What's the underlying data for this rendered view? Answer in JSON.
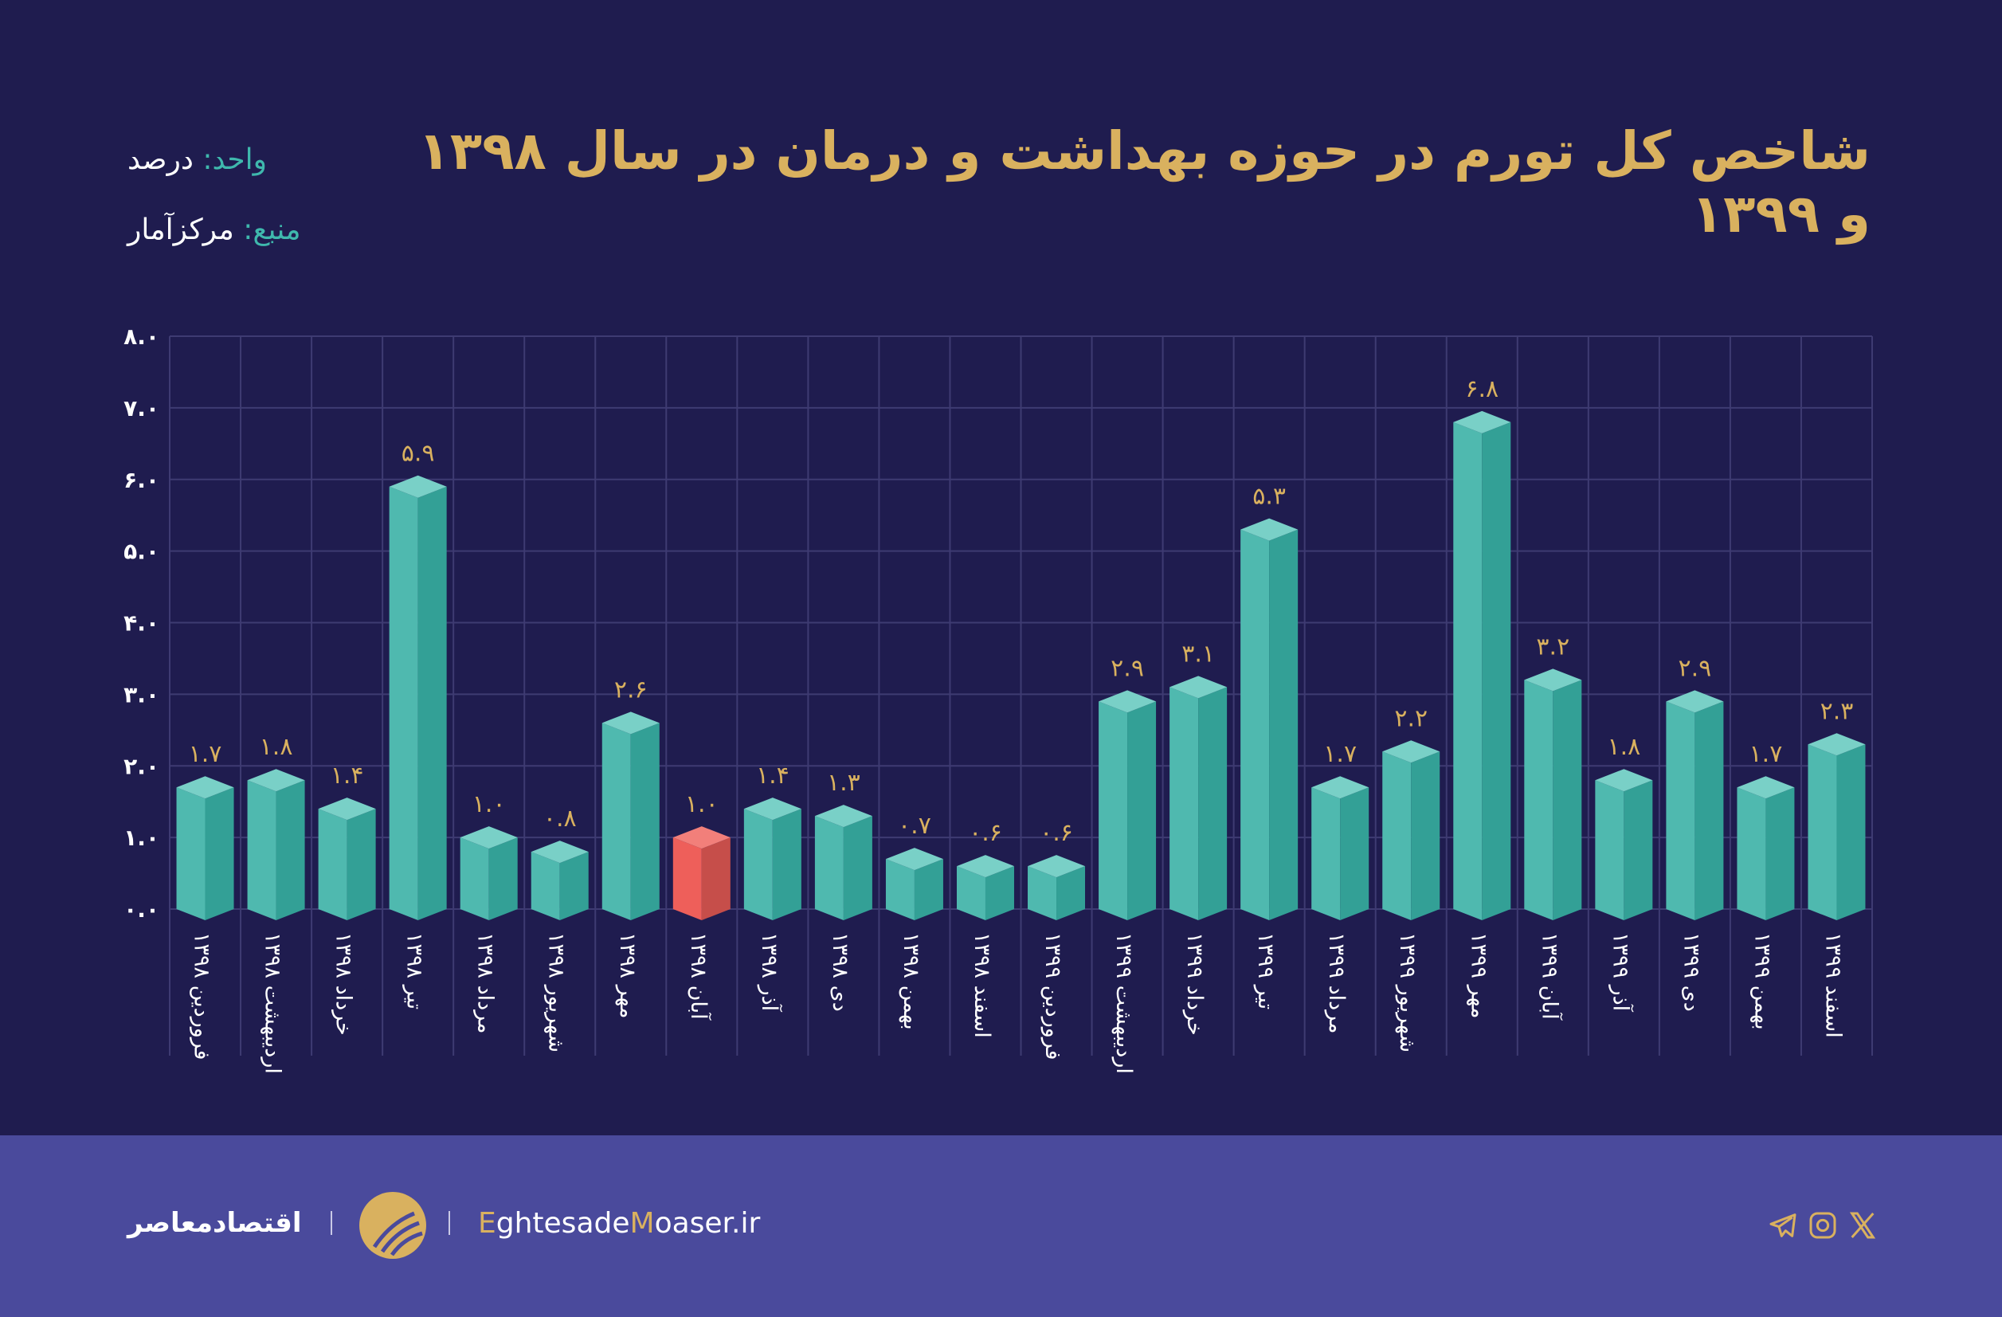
{
  "header": {
    "title": "شاخص کل تورم در حوزه بهداشت و درمان در سال ۱۳۹۸ و ۱۳۹۹",
    "unit_key": "واحد:",
    "unit_value": "درصد",
    "source_key": "منبع:",
    "source_value": "مرکزآمار"
  },
  "chart_data": {
    "type": "bar",
    "title": "شاخص کل تورم در حوزه بهداشت و درمان در سال ۱۳۹۸ و ۱۳۹۹",
    "ylim": [
      0,
      8
    ],
    "grid": true,
    "y_ticks": [
      0,
      1,
      2,
      3,
      4,
      5,
      6,
      7,
      8
    ],
    "y_tick_labels": [
      "۰.۰",
      "۱.۰",
      "۲.۰",
      "۳.۰",
      "۴.۰",
      "۵.۰",
      "۶.۰",
      "۷.۰",
      "۸.۰"
    ],
    "categories": [
      "فروردین ۱۳۹۸",
      "اردیبهشت ۱۳۹۸",
      "خرداد ۱۳۹۸",
      "تیر ۱۳۹۸",
      "مرداد ۱۳۹۸",
      "شهریور ۱۳۹۸",
      "مهر ۱۳۹۸",
      "آبان ۱۳۹۸",
      "آذر ۱۳۹۸",
      "دی ۱۳۹۸",
      "بهمن ۱۳۹۸",
      "اسفند ۱۳۹۸",
      "فروردین ۱۳۹۹",
      "اردیبهشت ۱۳۹۹",
      "خرداد ۱۳۹۹",
      "تیر ۱۳۹۹",
      "مرداد ۱۳۹۹",
      "شهریور ۱۳۹۹",
      "مهر ۱۳۹۹",
      "آبان ۱۳۹۹",
      "آذر ۱۳۹۹",
      "دی ۱۳۹۹",
      "بهمن ۱۳۹۹",
      "اسفند ۱۳۹۹"
    ],
    "values": [
      1.7,
      1.8,
      1.4,
      5.9,
      1.0,
      0.8,
      2.6,
      1.0,
      1.4,
      1.3,
      0.7,
      0.6,
      0.6,
      2.9,
      3.1,
      5.3,
      1.7,
      2.2,
      6.8,
      3.2,
      1.8,
      2.9,
      1.7,
      2.3
    ],
    "value_labels": [
      "۱.۷",
      "۱.۸",
      "۱.۴",
      "۵.۹",
      "۱.۰",
      "۰.۸",
      "۲.۶",
      "۱.۰",
      "۱.۴",
      "۱.۳",
      "۰.۷",
      "۰.۶",
      "۰.۶",
      "۲.۹",
      "۳.۱",
      "۵.۳",
      "۱.۷",
      "۲.۲",
      "۶.۸",
      "۳.۲",
      "۱.۸",
      "۲.۹",
      "۱.۷",
      "۲.۳"
    ],
    "highlight_index": 7,
    "colors": {
      "bar": "#4fb9af",
      "bar_dark": "#33a096",
      "bar_top": "#79d0c7",
      "highlight": "#ee5f5a",
      "highlight_dark": "#c64e4a",
      "highlight_top": "#f27f7a",
      "value_label": "#d9b15f",
      "grid": "#3e3b72"
    }
  },
  "footer": {
    "brand_fa": "اقتصادمعاصر",
    "site_E": "E",
    "site_part1": "ghtesade",
    "site_M": "M",
    "site_part2": "oaser.ir",
    "social_icons": [
      "telegram-icon",
      "instagram-icon",
      "x-icon"
    ]
  }
}
